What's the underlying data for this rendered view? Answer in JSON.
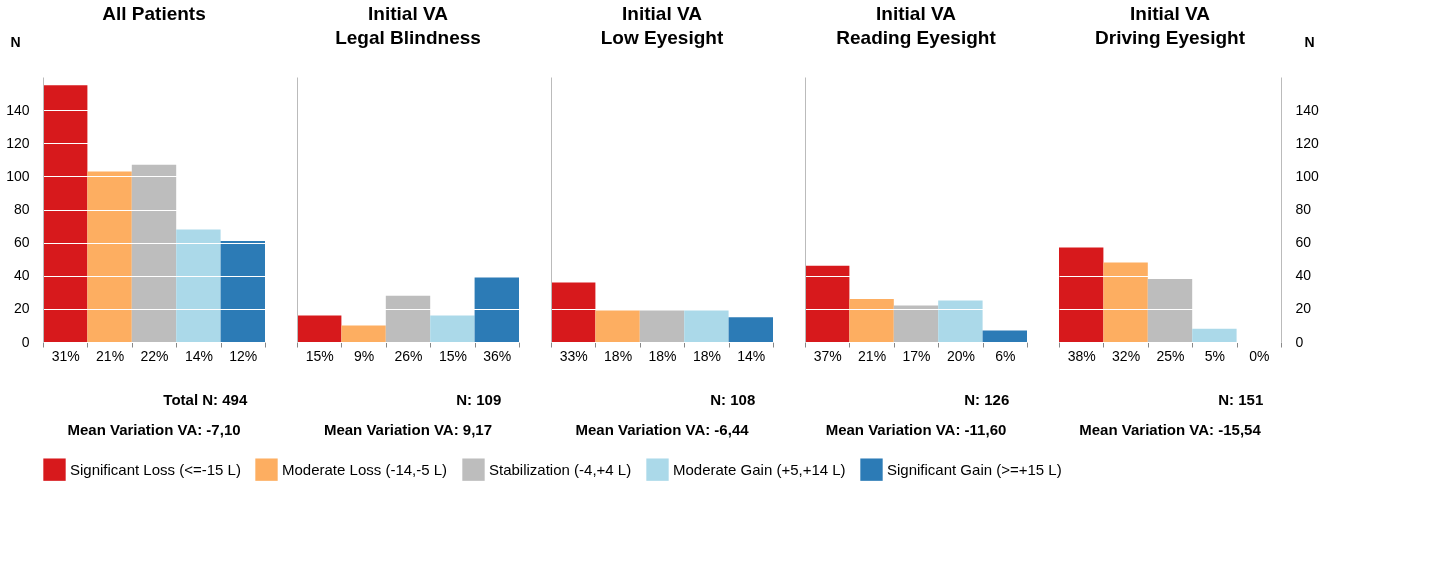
{
  "chart_data": [
    {
      "type": "bar",
      "title": "All Patients",
      "ylabel": "N",
      "categories": [
        "31%",
        "21%",
        "22%",
        "14%",
        "12%"
      ],
      "ylim": [
        0,
        160
      ],
      "yticks": [
        0,
        20,
        40,
        60,
        80,
        100,
        120,
        140
      ],
      "grid": "y",
      "legend": "bottom",
      "series": [
        {
          "name": "Significant Loss (<=-15 L)",
          "color": "#d7191c",
          "values": [
            155,
            null,
            null,
            null,
            null
          ]
        },
        {
          "name": "Moderate Loss (-14,-5 L)",
          "color": "#fdae61",
          "values": [
            null,
            103,
            null,
            null,
            null
          ]
        },
        {
          "name": "Stabilization (-4,+4 L)",
          "color": "#bdbdbd",
          "values": [
            null,
            null,
            107,
            null,
            null
          ]
        },
        {
          "name": "Moderate Gain (+5,+14 L)",
          "color": "#abd9e9",
          "values": [
            null,
            null,
            null,
            68,
            null
          ]
        },
        {
          "name": "Significant Gain (>=+15 L)",
          "color": "#2c7bb6",
          "values": [
            null,
            null,
            null,
            null,
            61
          ]
        }
      ],
      "annotations": [
        "Total N: 494",
        "Mean Variation VA: -7,10"
      ]
    },
    {
      "type": "bar",
      "title": "Initial VA\nLegal Blindness",
      "categories": [
        "15%",
        "9%",
        "26%",
        "15%",
        "36%"
      ],
      "ylim": [
        0,
        160
      ],
      "yticks": [
        0,
        20,
        40,
        60,
        80,
        100,
        120,
        140
      ],
      "grid": "y",
      "tick_labels": "x",
      "series": [
        {
          "color": "#d7191c",
          "values": [
            16,
            null,
            null,
            null,
            null
          ]
        },
        {
          "color": "#fdae61",
          "values": [
            null,
            10,
            null,
            null,
            null
          ]
        },
        {
          "color": "#bdbdbd",
          "values": [
            null,
            null,
            28,
            null,
            null
          ]
        },
        {
          "color": "#abd9e9",
          "values": [
            null,
            null,
            null,
            16,
            null
          ]
        },
        {
          "color": "#2c7bb6",
          "values": [
            null,
            null,
            null,
            null,
            39
          ]
        }
      ],
      "annotations": [
        "N: 109",
        "Mean Variation VA: 9,17"
      ]
    },
    {
      "type": "bar",
      "title": "Initial VA\nLow Eyesight",
      "categories": [
        "33%",
        "18%",
        "18%",
        "18%",
        "14%"
      ],
      "ylim": [
        0,
        160
      ],
      "yticks": [
        0,
        20,
        40,
        60,
        80,
        100,
        120,
        140
      ],
      "grid": "y",
      "tick_labels": "x",
      "series": [
        {
          "color": "#d7191c",
          "values": [
            36,
            null,
            null,
            null,
            null
          ]
        },
        {
          "color": "#fdae61",
          "values": [
            null,
            19,
            null,
            null,
            null
          ]
        },
        {
          "color": "#bdbdbd",
          "values": [
            null,
            null,
            19,
            null,
            null
          ]
        },
        {
          "color": "#abd9e9",
          "values": [
            null,
            null,
            null,
            19,
            null
          ]
        },
        {
          "color": "#2c7bb6",
          "values": [
            null,
            null,
            null,
            null,
            15
          ]
        }
      ],
      "annotations": [
        "N: 108",
        "Mean Variation VA: -6,44"
      ]
    },
    {
      "type": "bar",
      "title": "Initial VA\nReading Eyesight",
      "categories": [
        "37%",
        "21%",
        "17%",
        "20%",
        "6%"
      ],
      "ylim": [
        0,
        160
      ],
      "yticks": [
        0,
        20,
        40,
        60,
        80,
        100,
        120,
        140
      ],
      "grid": "y",
      "tick_labels": "x",
      "series": [
        {
          "color": "#d7191c",
          "values": [
            46,
            null,
            null,
            null,
            null
          ]
        },
        {
          "color": "#fdae61",
          "values": [
            null,
            26,
            null,
            null,
            null
          ]
        },
        {
          "color": "#bdbdbd",
          "values": [
            null,
            null,
            22,
            null,
            null
          ]
        },
        {
          "color": "#abd9e9",
          "values": [
            null,
            null,
            null,
            25,
            null
          ]
        },
        {
          "color": "#2c7bb6",
          "values": [
            null,
            null,
            null,
            null,
            7
          ]
        }
      ],
      "annotations": [
        "N: 126",
        "Mean Variation VA: -11,60"
      ]
    },
    {
      "type": "bar",
      "title": "Initial VA\nDriving Eyesight",
      "ylabel": "N",
      "categories": [
        "38%",
        "32%",
        "25%",
        "5%",
        "0%"
      ],
      "ylim": [
        0,
        160
      ],
      "yticks": [
        0,
        20,
        40,
        60,
        80,
        100,
        120,
        140
      ],
      "grid": "y",
      "series": [
        {
          "color": "#d7191c",
          "values": [
            57,
            null,
            null,
            null,
            null
          ]
        },
        {
          "color": "#fdae61",
          "values": [
            null,
            48,
            null,
            null,
            null
          ]
        },
        {
          "color": "#bdbdbd",
          "values": [
            null,
            null,
            38,
            null,
            null
          ]
        },
        {
          "color": "#abd9e9",
          "values": [
            null,
            null,
            null,
            8,
            null
          ]
        },
        {
          "color": "#2c7bb6",
          "values": [
            null,
            null,
            null,
            null,
            0
          ]
        }
      ],
      "annotations": [
        "N: 151",
        "Mean Variation VA: -15,54"
      ]
    }
  ]
}
